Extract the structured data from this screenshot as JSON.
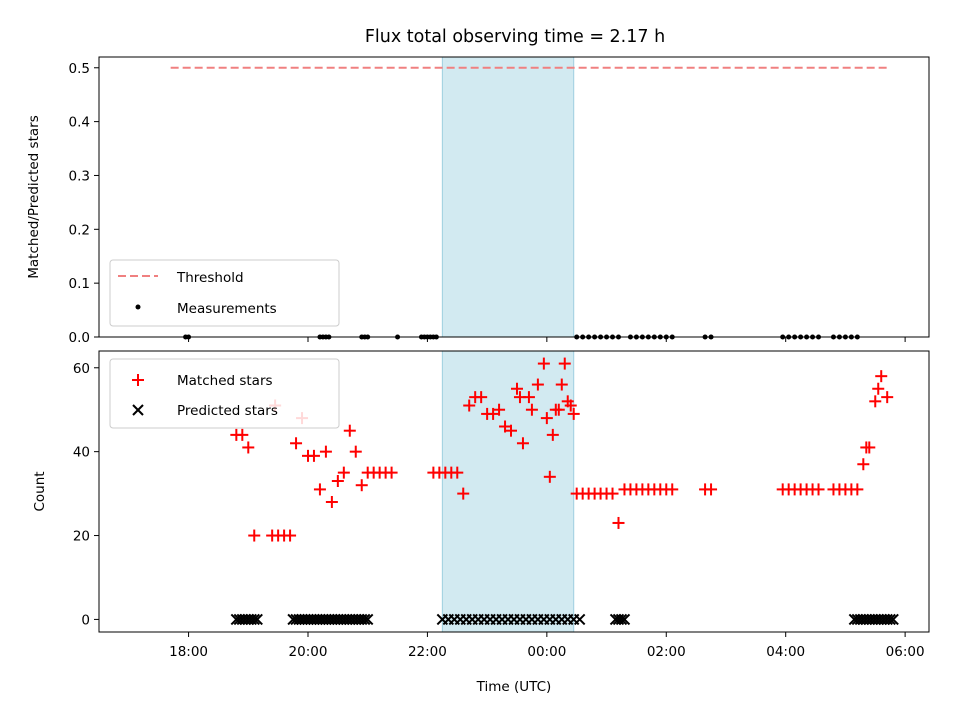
{
  "chart_data": {
    "title": "Flux total observing time = 2.17 h",
    "xlabel": "Time (UTC)",
    "x_unit": "hours relative to 00:00 UTC",
    "xlim": [
      -7.5,
      6.4
    ],
    "xticks": [
      {
        "value": -6,
        "label": "18:00"
      },
      {
        "value": -4,
        "label": "20:00"
      },
      {
        "value": -2,
        "label": "22:00"
      },
      {
        "value": 0,
        "label": "00:00"
      },
      {
        "value": 2,
        "label": "02:00"
      },
      {
        "value": 4,
        "label": "04:00"
      },
      {
        "value": 6,
        "label": "06:00"
      }
    ],
    "shaded_region": {
      "x": [
        -1.75,
        0.45
      ],
      "color": "#add8e6"
    },
    "panels": [
      {
        "type": "line+scatter",
        "ylabel": "Matched/Predicted stars",
        "ylim": [
          0,
          0.52
        ],
        "yticks": [
          0.0,
          0.1,
          0.2,
          0.3,
          0.4,
          0.5
        ],
        "legend_position": "lower-left",
        "threshold": {
          "name": "Threshold",
          "y": 0.5,
          "x_range": [
            -6.3,
            5.7
          ],
          "color": "#f08080",
          "style": "dashed"
        },
        "series": [
          {
            "name": "Measurements",
            "color": "#000000",
            "marker": "dot",
            "x": [
              -6.05,
              -6.0,
              -3.8,
              -3.75,
              -3.7,
              -3.65,
              -3.1,
              -3.05,
              -3.0,
              -2.5,
              -2.1,
              -2.05,
              -2.0,
              -1.95,
              -1.9,
              -1.85,
              0.5,
              0.6,
              0.7,
              0.8,
              0.9,
              1.0,
              1.1,
              1.2,
              1.4,
              1.5,
              1.6,
              1.7,
              1.8,
              1.9,
              2.0,
              2.1,
              2.65,
              2.75,
              3.95,
              4.05,
              4.15,
              4.25,
              4.35,
              4.45,
              4.55,
              4.8,
              4.9,
              5.0,
              5.1,
              5.2
            ],
            "y_all": 0
          }
        ]
      },
      {
        "type": "scatter",
        "ylabel": "Count",
        "ylim": [
          -3,
          64
        ],
        "yticks": [
          0,
          20,
          40,
          60
        ],
        "legend_position": "upper-left",
        "series": [
          {
            "name": "Matched stars",
            "color": "#ff0000",
            "marker": "plus",
            "points": [
              [
                -4.55,
                51
              ],
              [
                -5.2,
                44
              ],
              [
                -5.1,
                44
              ],
              [
                -5.0,
                41
              ],
              [
                -4.9,
                20
              ],
              [
                -4.6,
                20
              ],
              [
                -4.5,
                20
              ],
              [
                -4.4,
                20
              ],
              [
                -4.3,
                20
              ],
              [
                -4.2,
                42
              ],
              [
                -4.1,
                48
              ],
              [
                -4.0,
                39
              ],
              [
                -3.9,
                39
              ],
              [
                -3.8,
                31
              ],
              [
                -3.7,
                40
              ],
              [
                -3.6,
                28
              ],
              [
                -3.5,
                33
              ],
              [
                -3.4,
                35
              ],
              [
                -3.3,
                45
              ],
              [
                -3.2,
                40
              ],
              [
                -3.1,
                32
              ],
              [
                -3.0,
                35
              ],
              [
                -2.9,
                35
              ],
              [
                -2.8,
                35
              ],
              [
                -2.7,
                35
              ],
              [
                -2.6,
                35
              ],
              [
                -1.9,
                35
              ],
              [
                -1.8,
                35
              ],
              [
                -1.7,
                35
              ],
              [
                -1.6,
                35
              ],
              [
                -1.5,
                35
              ],
              [
                -1.4,
                30
              ],
              [
                -1.3,
                51
              ],
              [
                -1.2,
                53
              ],
              [
                -1.1,
                53
              ],
              [
                -1.0,
                49
              ],
              [
                -0.9,
                49
              ],
              [
                -0.8,
                50
              ],
              [
                -0.7,
                46
              ],
              [
                -0.6,
                45
              ],
              [
                -0.5,
                55
              ],
              [
                -0.45,
                53
              ],
              [
                -0.4,
                42
              ],
              [
                -0.3,
                53
              ],
              [
                -0.25,
                50
              ],
              [
                -0.15,
                56
              ],
              [
                -0.05,
                61
              ],
              [
                0.0,
                48
              ],
              [
                0.05,
                34
              ],
              [
                0.1,
                44
              ],
              [
                0.15,
                50
              ],
              [
                0.2,
                50
              ],
              [
                0.25,
                56
              ],
              [
                0.3,
                61
              ],
              [
                0.35,
                52
              ],
              [
                0.4,
                51
              ],
              [
                0.45,
                49
              ],
              [
                0.5,
                30
              ],
              [
                0.6,
                30
              ],
              [
                0.7,
                30
              ],
              [
                0.8,
                30
              ],
              [
                0.9,
                30
              ],
              [
                1.0,
                30
              ],
              [
                1.1,
                30
              ],
              [
                1.2,
                23
              ],
              [
                1.3,
                31
              ],
              [
                1.4,
                31
              ],
              [
                1.5,
                31
              ],
              [
                1.6,
                31
              ],
              [
                1.7,
                31
              ],
              [
                1.8,
                31
              ],
              [
                1.9,
                31
              ],
              [
                2.0,
                31
              ],
              [
                2.1,
                31
              ],
              [
                2.65,
                31
              ],
              [
                2.75,
                31
              ],
              [
                3.95,
                31
              ],
              [
                4.05,
                31
              ],
              [
                4.15,
                31
              ],
              [
                4.25,
                31
              ],
              [
                4.35,
                31
              ],
              [
                4.45,
                31
              ],
              [
                4.55,
                31
              ],
              [
                4.8,
                31
              ],
              [
                4.9,
                31
              ],
              [
                5.0,
                31
              ],
              [
                5.1,
                31
              ],
              [
                5.2,
                31
              ],
              [
                5.3,
                37
              ],
              [
                5.35,
                41
              ],
              [
                5.4,
                41
              ],
              [
                5.5,
                52
              ],
              [
                5.55,
                55
              ],
              [
                5.6,
                58
              ],
              [
                5.7,
                53
              ]
            ]
          },
          {
            "name": "Predicted stars",
            "color": "#000000",
            "marker": "x",
            "points": [
              [
                -5.2,
                0
              ],
              [
                -5.15,
                0
              ],
              [
                -5.1,
                0
              ],
              [
                -5.05,
                0
              ],
              [
                -5.0,
                0
              ],
              [
                -4.95,
                0
              ],
              [
                -4.9,
                0
              ],
              [
                -4.85,
                0
              ],
              [
                -4.25,
                0
              ],
              [
                -4.2,
                0
              ],
              [
                -4.15,
                0
              ],
              [
                -4.1,
                0
              ],
              [
                -4.05,
                0
              ],
              [
                -4.0,
                0
              ],
              [
                -3.95,
                0
              ],
              [
                -3.9,
                0
              ],
              [
                -3.85,
                0
              ],
              [
                -3.8,
                0
              ],
              [
                -3.75,
                0
              ],
              [
                -3.7,
                0
              ],
              [
                -3.65,
                0
              ],
              [
                -3.6,
                0
              ],
              [
                -3.55,
                0
              ],
              [
                -3.5,
                0
              ],
              [
                -3.45,
                0
              ],
              [
                -3.4,
                0
              ],
              [
                -3.35,
                0
              ],
              [
                -3.3,
                0
              ],
              [
                -3.25,
                0
              ],
              [
                -3.2,
                0
              ],
              [
                -3.15,
                0
              ],
              [
                -3.1,
                0
              ],
              [
                -3.05,
                0
              ],
              [
                -3.0,
                0
              ],
              [
                -1.75,
                0
              ],
              [
                -1.65,
                0
              ],
              [
                -1.55,
                0
              ],
              [
                -1.45,
                0
              ],
              [
                -1.35,
                0
              ],
              [
                -1.25,
                0
              ],
              [
                -1.15,
                0
              ],
              [
                -1.05,
                0
              ],
              [
                -0.95,
                0
              ],
              [
                -0.85,
                0
              ],
              [
                -0.75,
                0
              ],
              [
                -0.65,
                0
              ],
              [
                -0.55,
                0
              ],
              [
                -0.45,
                0
              ],
              [
                -0.35,
                0
              ],
              [
                -0.25,
                0
              ],
              [
                -0.15,
                0
              ],
              [
                -0.05,
                0
              ],
              [
                0.05,
                0
              ],
              [
                0.15,
                0
              ],
              [
                0.25,
                0
              ],
              [
                0.35,
                0
              ],
              [
                0.45,
                0
              ],
              [
                0.55,
                0
              ],
              [
                1.15,
                0
              ],
              [
                1.2,
                0
              ],
              [
                1.25,
                0
              ],
              [
                1.3,
                0
              ],
              [
                5.15,
                0
              ],
              [
                5.2,
                0
              ],
              [
                5.25,
                0
              ],
              [
                5.3,
                0
              ],
              [
                5.35,
                0
              ],
              [
                5.4,
                0
              ],
              [
                5.45,
                0
              ],
              [
                5.5,
                0
              ],
              [
                5.55,
                0
              ],
              [
                5.6,
                0
              ],
              [
                5.65,
                0
              ],
              [
                5.7,
                0
              ],
              [
                5.75,
                0
              ],
              [
                5.8,
                0
              ]
            ]
          }
        ]
      }
    ]
  }
}
